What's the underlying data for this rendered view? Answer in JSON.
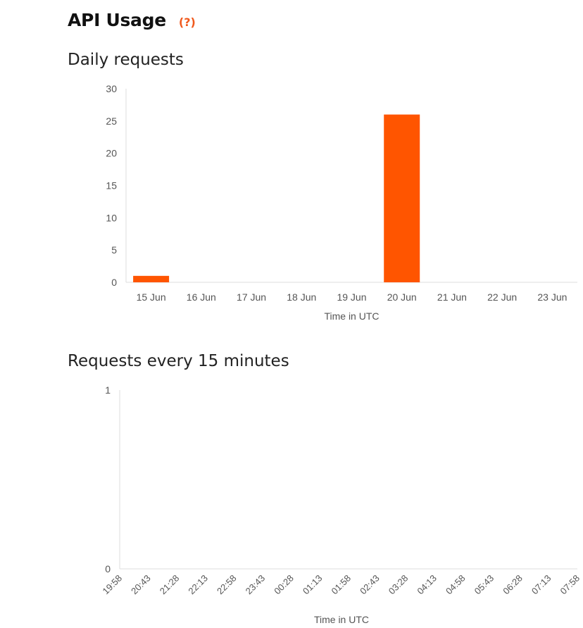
{
  "header": {
    "title": "API Usage",
    "help_label": "(?)"
  },
  "colors": {
    "accent": "#ff5500",
    "axis": "#dddddd",
    "tick_text": "#555555"
  },
  "chart_data": [
    {
      "type": "bar",
      "title": "Daily requests",
      "xlabel": "Time in UTC",
      "ylabel": "",
      "ylim": [
        0,
        30
      ],
      "yticks": [
        0,
        5,
        10,
        15,
        20,
        25,
        30
      ],
      "categories": [
        "15 Jun",
        "16 Jun",
        "17 Jun",
        "18 Jun",
        "19 Jun",
        "20 Jun",
        "21 Jun",
        "22 Jun",
        "23 Jun"
      ],
      "values": [
        1,
        0,
        0,
        0,
        0,
        26,
        0,
        0,
        0
      ],
      "grid": false,
      "color": "#ff5500"
    },
    {
      "type": "bar",
      "title": "Requests every 15 minutes",
      "xlabel": "Time in UTC",
      "ylabel": "",
      "ylim": [
        0,
        1
      ],
      "yticks": [
        0,
        1
      ],
      "categories": [
        "19:58",
        "20:43",
        "21:28",
        "22:13",
        "22:58",
        "23:43",
        "00:28",
        "01:13",
        "01:58",
        "02:43",
        "03:28",
        "04:13",
        "04:58",
        "05:43",
        "06:28",
        "07:13",
        "07:58"
      ],
      "values": [
        0,
        0,
        0,
        0,
        0,
        0,
        0,
        0,
        0,
        0,
        0,
        0,
        0,
        0,
        0,
        0,
        0
      ],
      "grid": false,
      "color": "#ff5500"
    }
  ]
}
